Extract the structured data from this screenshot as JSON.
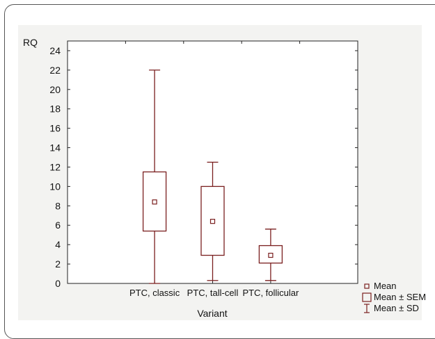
{
  "chart_data": {
    "type": "box",
    "ylabel": "RQ",
    "xlabel": "Variant",
    "categories": [
      "PTC, classic",
      "PTC, tall-cell",
      "PTC, follicular"
    ],
    "series": [
      {
        "name": "Mean",
        "values": [
          8.4,
          6.4,
          2.9
        ]
      },
      {
        "name": "Mean ± SEM",
        "lower": [
          5.4,
          2.9,
          2.1
        ],
        "upper": [
          11.5,
          10.0,
          3.9
        ]
      },
      {
        "name": "Mean ± SD",
        "lower": [
          0,
          0.3,
          0.3
        ],
        "upper": [
          22.0,
          12.5,
          5.6
        ]
      }
    ],
    "ylim": [
      0,
      25
    ],
    "yticks": [
      0,
      2,
      4,
      6,
      8,
      10,
      12,
      14,
      16,
      18,
      20,
      22,
      24
    ],
    "grid": true,
    "legend_position": "bottom-right",
    "colors": {
      "marks": "#7a1f1f",
      "axis": "#222222",
      "grid": "#c8c8c8",
      "plot_background": "#ffffff"
    }
  },
  "legend": {
    "mean": "Mean",
    "sem": "Mean ± SEM",
    "sd": "Mean ± SD"
  }
}
